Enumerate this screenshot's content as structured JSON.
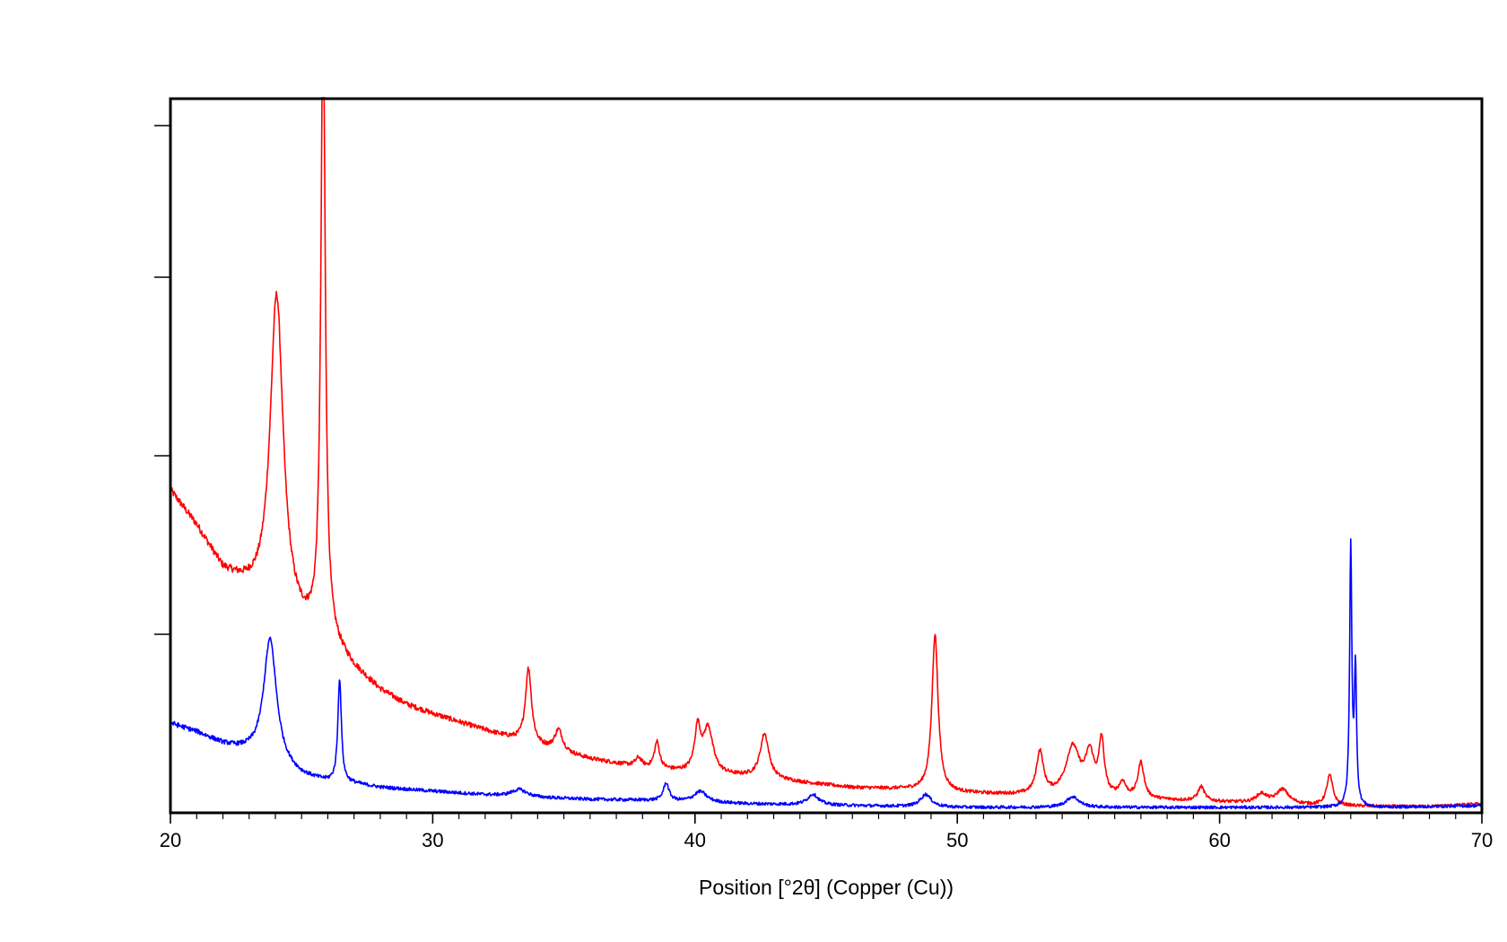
{
  "chart_data": {
    "type": "line",
    "title": "",
    "xlabel": "Position [°2θ] (Copper (Cu))",
    "ylabel": "",
    "xlim": [
      20,
      70
    ],
    "ylim": [
      0,
      4
    ],
    "x_ticks": [
      20,
      30,
      40,
      50,
      60,
      70
    ],
    "x_minor_step": 1,
    "y_ticks": [
      1,
      2,
      3,
      4
    ],
    "y_tick_labels_shown": false,
    "grid": false,
    "legend": "none",
    "series": [
      {
        "color": "#ff0000",
        "baseline": [
          [
            20,
            1.8
          ],
          [
            21,
            1.6
          ],
          [
            22,
            1.35
          ],
          [
            23,
            1.24
          ],
          [
            24,
            1.12
          ],
          [
            25,
            1.02
          ],
          [
            26,
            0.96
          ],
          [
            27,
            0.8
          ],
          [
            28,
            0.68
          ],
          [
            29,
            0.6
          ],
          [
            30,
            0.55
          ],
          [
            32,
            0.46
          ],
          [
            34,
            0.37
          ],
          [
            36,
            0.3
          ],
          [
            38,
            0.25
          ],
          [
            40,
            0.22
          ],
          [
            42,
            0.2
          ],
          [
            44,
            0.17
          ],
          [
            46,
            0.14
          ],
          [
            48,
            0.13
          ],
          [
            50,
            0.11
          ],
          [
            52,
            0.1
          ],
          [
            54,
            0.09
          ],
          [
            56,
            0.08
          ],
          [
            58,
            0.07
          ],
          [
            60,
            0.06
          ],
          [
            62,
            0.05
          ],
          [
            64,
            0.04
          ],
          [
            66,
            0.035
          ],
          [
            68,
            0.035
          ],
          [
            70,
            0.05
          ]
        ],
        "peaks": [
          {
            "x": 24.05,
            "height": 1.78,
            "width": 0.3
          },
          {
            "x": 25.82,
            "height": 3.5,
            "width": 0.1
          },
          {
            "x": 33.65,
            "height": 0.42,
            "width": 0.14
          },
          {
            "x": 34.8,
            "height": 0.12,
            "width": 0.18
          },
          {
            "x": 37.85,
            "height": 0.05,
            "width": 0.15
          },
          {
            "x": 38.55,
            "height": 0.15,
            "width": 0.12
          },
          {
            "x": 40.1,
            "height": 0.24,
            "width": 0.14
          },
          {
            "x": 40.5,
            "height": 0.25,
            "width": 0.22
          },
          {
            "x": 42.65,
            "height": 0.25,
            "width": 0.2
          },
          {
            "x": 49.15,
            "height": 0.88,
            "width": 0.14
          },
          {
            "x": 53.15,
            "height": 0.24,
            "width": 0.16
          },
          {
            "x": 54.4,
            "height": 0.27,
            "width": 0.32
          },
          {
            "x": 55.05,
            "height": 0.22,
            "width": 0.2
          },
          {
            "x": 55.5,
            "height": 0.3,
            "width": 0.12
          },
          {
            "x": 56.3,
            "height": 0.08,
            "width": 0.15
          },
          {
            "x": 57.0,
            "height": 0.2,
            "width": 0.14
          },
          {
            "x": 59.3,
            "height": 0.08,
            "width": 0.15
          },
          {
            "x": 61.6,
            "height": 0.05,
            "width": 0.25
          },
          {
            "x": 62.4,
            "height": 0.08,
            "width": 0.28
          },
          {
            "x": 64.2,
            "height": 0.17,
            "width": 0.14
          }
        ]
      },
      {
        "color": "#0000ff",
        "baseline": [
          [
            20,
            0.5
          ],
          [
            21,
            0.45
          ],
          [
            22,
            0.38
          ],
          [
            23,
            0.33
          ],
          [
            24,
            0.26
          ],
          [
            25,
            0.2
          ],
          [
            26,
            0.17
          ],
          [
            27,
            0.16
          ],
          [
            28,
            0.14
          ],
          [
            29,
            0.13
          ],
          [
            30,
            0.12
          ],
          [
            32,
            0.1
          ],
          [
            34,
            0.085
          ],
          [
            36,
            0.075
          ],
          [
            38,
            0.07
          ],
          [
            40,
            0.06
          ],
          [
            42,
            0.05
          ],
          [
            44,
            0.045
          ],
          [
            46,
            0.04
          ],
          [
            48,
            0.035
          ],
          [
            50,
            0.03
          ],
          [
            52,
            0.03
          ],
          [
            54,
            0.03
          ],
          [
            56,
            0.03
          ],
          [
            58,
            0.03
          ],
          [
            60,
            0.03
          ],
          [
            62,
            0.03
          ],
          [
            64,
            0.03
          ],
          [
            66,
            0.03
          ],
          [
            68,
            0.035
          ],
          [
            70,
            0.04
          ]
        ],
        "peaks": [
          {
            "x": 23.8,
            "height": 0.7,
            "width": 0.3
          },
          {
            "x": 26.45,
            "height": 0.58,
            "width": 0.08
          },
          {
            "x": 33.3,
            "height": 0.04,
            "width": 0.35
          },
          {
            "x": 38.9,
            "height": 0.1,
            "width": 0.13
          },
          {
            "x": 40.2,
            "height": 0.06,
            "width": 0.3
          },
          {
            "x": 44.5,
            "height": 0.06,
            "width": 0.25
          },
          {
            "x": 48.8,
            "height": 0.07,
            "width": 0.25
          },
          {
            "x": 54.4,
            "height": 0.06,
            "width": 0.3
          },
          {
            "x": 65.0,
            "height": 1.45,
            "width": 0.05
          },
          {
            "x": 65.18,
            "height": 0.75,
            "width": 0.05
          }
        ]
      }
    ]
  }
}
